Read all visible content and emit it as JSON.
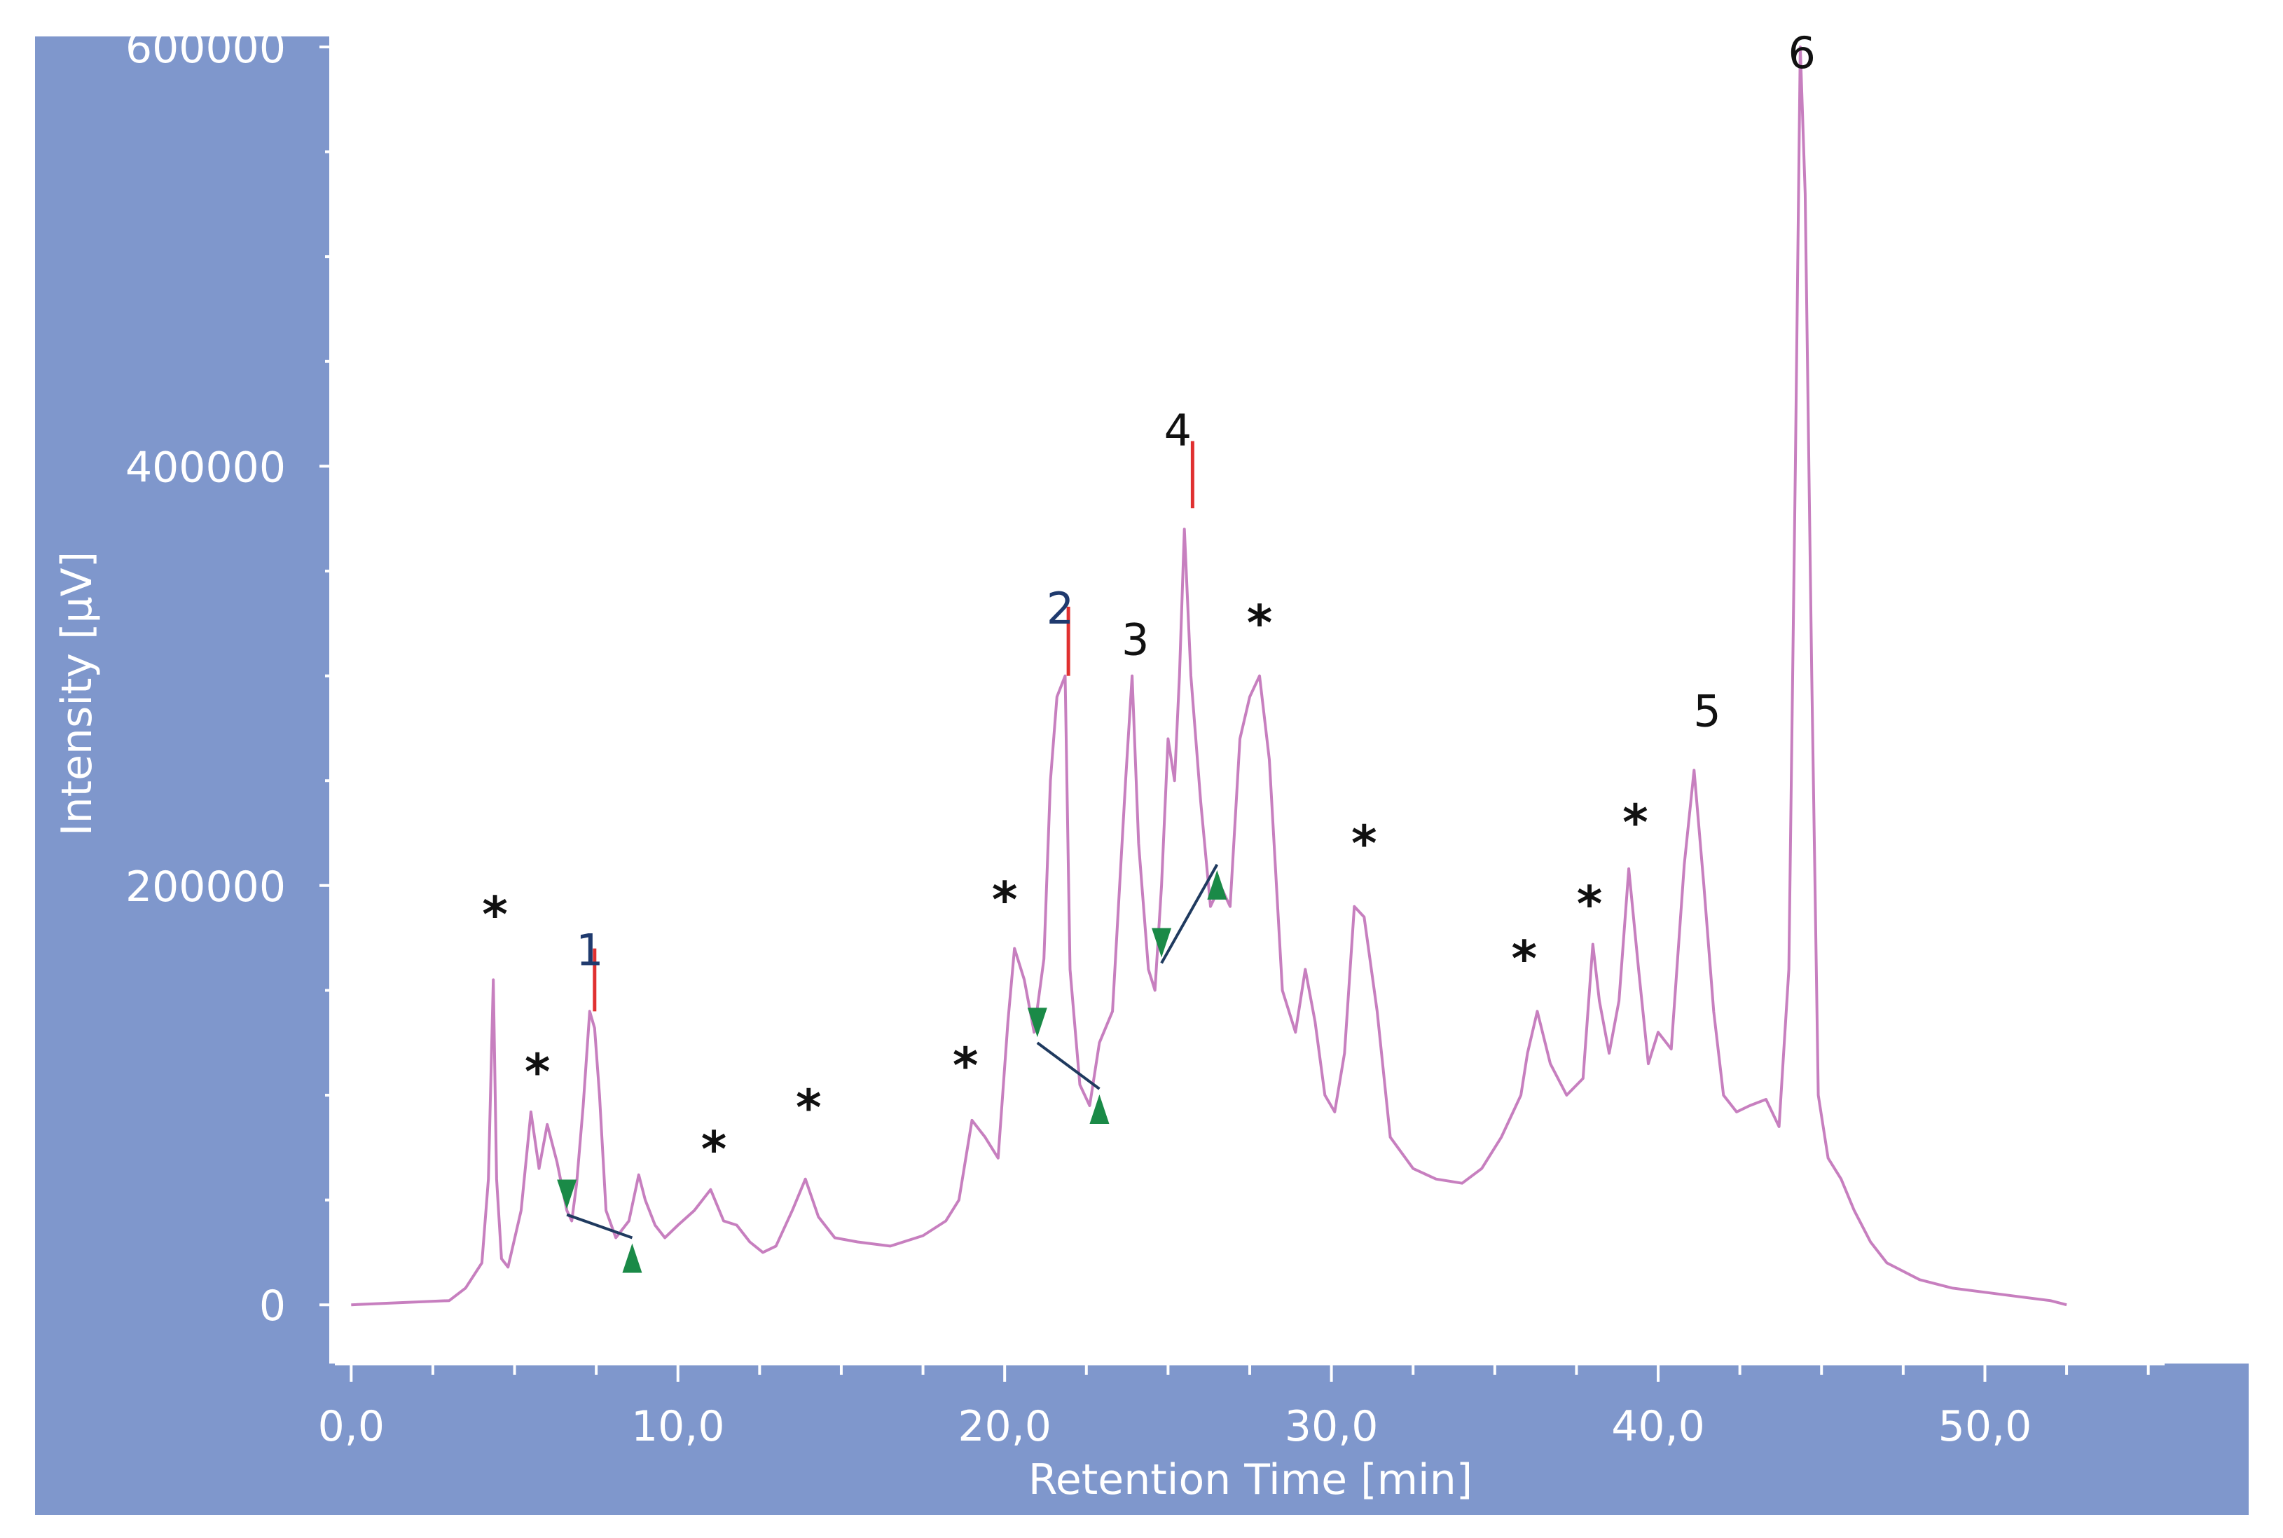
{
  "chart_data": {
    "type": "line",
    "xlabel": "Retention Time [min]",
    "ylabel": "Intensity [µV]",
    "xlim": [
      -0.5,
      55.5
    ],
    "ylim": [
      -28000,
      605000
    ],
    "x_ticks": [
      0,
      10,
      20,
      30,
      40,
      50
    ],
    "x_tick_labels": [
      "0,0",
      "10,0",
      "20,0",
      "30,0",
      "40,0",
      "50,0"
    ],
    "y_ticks": [
      0,
      200000,
      400000,
      600000
    ],
    "y_tick_labels": [
      "0",
      "200000",
      "400000",
      "600000"
    ],
    "grid": false,
    "colors": {
      "panel": "#7f97cc",
      "trace": "#c77fbf",
      "baseline": "#1f3a5f",
      "marker": "#1a8a47",
      "peak_top": "#e03030",
      "annotation": "#111111",
      "axis_text": "#ffffff"
    },
    "series": [
      {
        "x": [
          0.0,
          3.0,
          3.5,
          4.0,
          4.2,
          4.35,
          4.45,
          4.6,
          4.8,
          5.2,
          5.5,
          5.75,
          6.0,
          6.3,
          6.6,
          6.75,
          6.9,
          7.1,
          7.3,
          7.45,
          7.6,
          7.8,
          8.1,
          8.5,
          8.8,
          9.0,
          9.3,
          9.6,
          10.0,
          10.5,
          11.0,
          11.4,
          11.8,
          12.2,
          12.6,
          13.0,
          13.5,
          13.9,
          14.3,
          14.8,
          15.5,
          16.5,
          17.5,
          18.2,
          18.6,
          19.0,
          19.4,
          19.8,
          20.1,
          20.3,
          20.6,
          20.9,
          21.2,
          21.4,
          21.6,
          21.85,
          22.0,
          22.3,
          22.6,
          22.9,
          23.3,
          23.7,
          23.9,
          24.1,
          24.4,
          24.6,
          24.8,
          25.0,
          25.2,
          25.35,
          25.5,
          25.7,
          26.0,
          26.3,
          26.6,
          26.9,
          27.2,
          27.5,
          27.8,
          28.1,
          28.5,
          28.9,
          29.2,
          29.5,
          29.8,
          30.1,
          30.4,
          30.7,
          31.0,
          31.4,
          31.8,
          32.5,
          33.2,
          34.0,
          34.6,
          35.2,
          35.8,
          36.0,
          36.3,
          36.7,
          37.2,
          37.7,
          38.0,
          38.2,
          38.5,
          38.8,
          39.1,
          39.4,
          39.7,
          40.0,
          40.4,
          40.8,
          41.1,
          41.4,
          41.7,
          42.0,
          42.4,
          42.8,
          43.3,
          43.7,
          44.0,
          44.2,
          44.35,
          44.5,
          44.7,
          44.9,
          45.2,
          45.6,
          46.0,
          46.5,
          47.0,
          48.0,
          49.0,
          50.0,
          51.0,
          52.0,
          52.5
        ],
        "y": [
          0,
          2000,
          8000,
          20000,
          60000,
          155000,
          60000,
          22000,
          18000,
          45000,
          92000,
          65000,
          86000,
          68000,
          45000,
          40000,
          58000,
          95000,
          140000,
          132000,
          100000,
          45000,
          32000,
          40000,
          62000,
          50000,
          38000,
          32000,
          38000,
          45000,
          55000,
          40000,
          38000,
          30000,
          25000,
          28000,
          45000,
          60000,
          42000,
          32000,
          30000,
          28000,
          33000,
          40000,
          50000,
          88000,
          80000,
          70000,
          135000,
          170000,
          155000,
          130000,
          165000,
          250000,
          290000,
          300000,
          160000,
          105000,
          95000,
          125000,
          140000,
          250000,
          300000,
          220000,
          160000,
          150000,
          200000,
          270000,
          250000,
          300000,
          370000,
          300000,
          240000,
          190000,
          200000,
          190000,
          270000,
          290000,
          300000,
          260000,
          150000,
          130000,
          160000,
          135000,
          100000,
          92000,
          120000,
          190000,
          185000,
          140000,
          80000,
          65000,
          60000,
          58000,
          65000,
          80000,
          100000,
          120000,
          140000,
          115000,
          100000,
          108000,
          172000,
          145000,
          120000,
          145000,
          208000,
          160000,
          115000,
          130000,
          122000,
          210000,
          255000,
          200000,
          140000,
          100000,
          92000,
          95000,
          98000,
          85000,
          160000,
          400000,
          600000,
          530000,
          300000,
          100000,
          70000,
          60000,
          45000,
          30000,
          20000,
          12000,
          8000,
          6000,
          4000,
          2000,
          0
        ]
      }
    ],
    "peak_labels": [
      {
        "text": "*",
        "x": 4.4,
        "y": 178000
      },
      {
        "text": "*",
        "x": 5.7,
        "y": 103000
      },
      {
        "text": "1",
        "x": 7.3,
        "y": 162000
      },
      {
        "text": "*",
        "x": 11.1,
        "y": 66000
      },
      {
        "text": "*",
        "x": 14.0,
        "y": 86000
      },
      {
        "text": "*",
        "x": 18.8,
        "y": 106000
      },
      {
        "text": "*",
        "x": 20.0,
        "y": 185000
      },
      {
        "text": "2",
        "x": 21.7,
        "y": 325000
      },
      {
        "text": "3",
        "x": 24.0,
        "y": 310000
      },
      {
        "text": "4",
        "x": 25.3,
        "y": 410000
      },
      {
        "text": "*",
        "x": 27.8,
        "y": 317000
      },
      {
        "text": "*",
        "x": 31.0,
        "y": 212000
      },
      {
        "text": "*",
        "x": 35.9,
        "y": 157000
      },
      {
        "text": "*",
        "x": 37.9,
        "y": 183000
      },
      {
        "text": "*",
        "x": 39.3,
        "y": 222000
      },
      {
        "text": "5",
        "x": 41.5,
        "y": 276000
      },
      {
        "text": "6",
        "x": 44.4,
        "y": 590000
      }
    ],
    "integration_baselines": [
      {
        "x1": 6.6,
        "y1": 43000,
        "x2": 8.6,
        "y2": 32000
      },
      {
        "x1": 21.0,
        "y1": 125000,
        "x2": 22.9,
        "y2": 103000
      },
      {
        "x1": 24.8,
        "y1": 163000,
        "x2": 26.5,
        "y2": 210000
      }
    ],
    "peak_top_marks": [
      {
        "x": 7.45,
        "y1": 140000,
        "y2": 170000
      },
      {
        "x": 21.95,
        "y1": 300000,
        "y2": 333000
      },
      {
        "x": 25.75,
        "y1": 380000,
        "y2": 412000
      }
    ]
  }
}
